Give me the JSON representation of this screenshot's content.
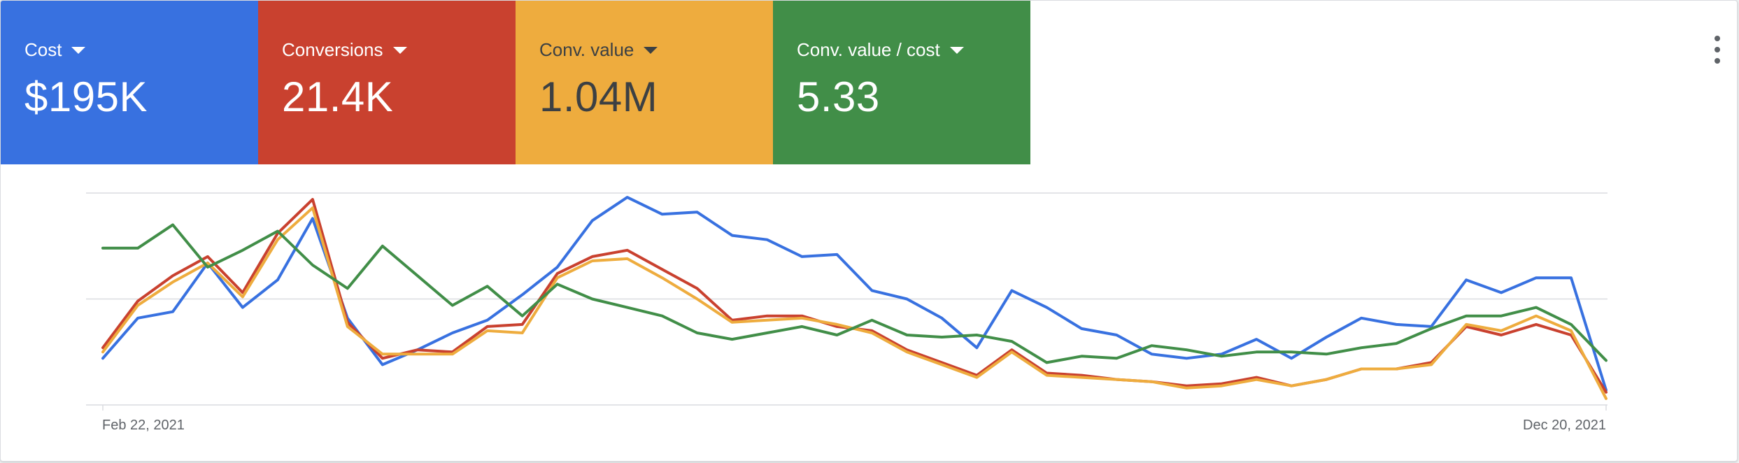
{
  "colors": {
    "cost": "#3871e0",
    "conversions": "#c9412f",
    "conv_value": "#eeac3e",
    "conv_value_cost": "#418e48",
    "grid": "#dadce0"
  },
  "tiles": [
    {
      "label": "Cost",
      "value": "$195K",
      "color": "#3871e0"
    },
    {
      "label": "Conversions",
      "value": "21.4K",
      "color": "#c9412f"
    },
    {
      "label": "Conv. value",
      "value": "1.04M",
      "color": "#eeac3e"
    },
    {
      "label": "Conv. value / cost",
      "value": "5.33",
      "color": "#418e48"
    }
  ],
  "menu_icon": "more-vert-icon",
  "chart_data": {
    "type": "line",
    "x_start_label": "Feb 22, 2021",
    "x_end_label": "Dec 20, 2021",
    "grid": true,
    "ylim": [
      0,
      100
    ],
    "series": [
      {
        "color": "#3871e0",
        "values": [
          22,
          41,
          44,
          67,
          46,
          59,
          88,
          41,
          19,
          26,
          34,
          40,
          52,
          65,
          87,
          98,
          90,
          91,
          80,
          78,
          70,
          71,
          54,
          50,
          41,
          27,
          54,
          46,
          36,
          33,
          24,
          22,
          24,
          31,
          22,
          32,
          41,
          38,
          37,
          59,
          53,
          60,
          60,
          7
        ]
      },
      {
        "color": "#c9412f",
        "values": [
          27,
          49,
          61,
          70,
          53,
          81,
          97,
          39,
          22,
          26,
          25,
          37,
          38,
          62,
          70,
          73,
          64,
          55,
          40,
          42,
          42,
          37,
          35,
          26,
          20,
          14,
          26,
          15,
          14,
          12,
          11,
          9,
          10,
          13,
          9,
          12,
          17,
          17,
          20,
          37,
          33,
          38,
          33,
          6
        ]
      },
      {
        "color": "#eeac3e",
        "values": [
          25,
          47,
          58,
          67,
          51,
          78,
          93,
          37,
          24,
          24,
          24,
          35,
          34,
          60,
          68,
          69,
          60,
          50,
          39,
          40,
          41,
          38,
          34,
          25,
          19,
          13,
          25,
          14,
          13,
          12,
          11,
          8,
          9,
          12,
          9,
          12,
          17,
          17,
          19,
          38,
          35,
          42,
          35,
          3
        ]
      },
      {
        "color": "#418e48",
        "values": [
          74,
          74,
          85,
          65,
          73,
          82,
          66,
          55,
          75,
          61,
          47,
          56,
          42,
          57,
          50,
          46,
          42,
          34,
          31,
          34,
          37,
          33,
          40,
          33,
          32,
          33,
          30,
          20,
          23,
          22,
          28,
          26,
          23,
          25,
          25,
          24,
          27,
          29,
          36,
          42,
          42,
          46,
          38,
          21
        ]
      }
    ]
  }
}
